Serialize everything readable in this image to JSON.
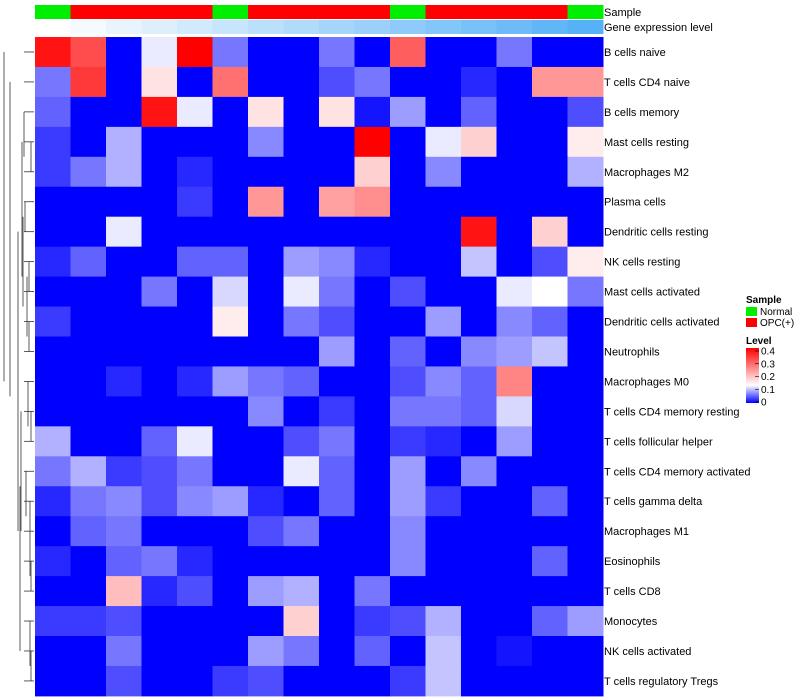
{
  "chart_data": {
    "type": "heatmap",
    "annotation_tracks": [
      {
        "name": "Sample",
        "values": [
          "Normal",
          "OPC(+)",
          "OPC(+)",
          "OPC(+)",
          "OPC(+)",
          "Normal",
          "OPC(+)",
          "OPC(+)",
          "OPC(+)",
          "OPC(+)",
          "Normal",
          "OPC(+)",
          "OPC(+)",
          "OPC(+)",
          "OPC(+)",
          "Normal"
        ]
      },
      {
        "name": "Gene expression level",
        "values": [
          1,
          2,
          3,
          4,
          5,
          6,
          7,
          8,
          9,
          10,
          11,
          12,
          13,
          14,
          15,
          16
        ]
      }
    ],
    "rows": [
      "B cells naive",
      "T cells CD4 naive",
      "B cells memory",
      "Mast cells resting",
      "Macrophages M2",
      "Plasma cells",
      "Dendritic cells resting",
      "NK cells resting",
      "Mast cells activated",
      "Dendritic cells activated",
      "Neutrophils",
      "Macrophages M0",
      "T cells CD4 memory resting",
      "T cells follicular helper",
      "T cells CD4 memory activated",
      "T cells gamma delta",
      "Macrophages M1",
      "Eosinophils",
      "T cells CD8",
      "Monocytes",
      "NK cells activated",
      "T cells regulatory  Tregs"
    ],
    "matrix": [
      [
        0.38,
        0.32,
        0,
        0.12,
        0.4,
        0.06,
        0,
        0,
        0.06,
        0,
        0.3,
        0,
        0,
        0.06,
        0,
        0
      ],
      [
        0.06,
        0.34,
        0,
        0.16,
        0,
        0.28,
        0,
        0,
        0.04,
        0.06,
        0,
        0,
        0.02,
        0,
        0.24,
        0.24
      ],
      [
        0.05,
        0,
        0,
        0.38,
        0.12,
        0,
        0.16,
        0,
        0.16,
        0.01,
        0.08,
        0,
        0.05,
        0,
        0,
        0.04
      ],
      [
        0.03,
        0,
        0.09,
        0,
        0,
        0,
        0.07,
        0,
        0,
        0.4,
        0,
        0.12,
        0.18,
        0,
        0,
        0.15
      ],
      [
        0.03,
        0.06,
        0.09,
        0,
        0.02,
        0,
        0,
        0,
        0,
        0.18,
        0,
        0.07,
        0,
        0,
        0,
        0.09
      ],
      [
        0,
        0,
        0,
        0,
        0.03,
        0,
        0.24,
        0,
        0.23,
        0.25,
        0,
        0,
        0,
        0,
        0,
        0
      ],
      [
        0,
        0,
        0.12,
        0,
        0,
        0,
        0,
        0,
        0,
        0,
        0,
        0,
        0.38,
        0,
        0.18,
        0
      ],
      [
        0.02,
        0.05,
        0,
        0,
        0.05,
        0.05,
        0,
        0.08,
        0.07,
        0.02,
        0,
        0,
        0.1,
        0,
        0.04,
        0.15
      ],
      [
        0,
        0,
        0,
        0.06,
        0,
        0.11,
        0,
        0.12,
        0.06,
        0,
        0.04,
        0,
        0,
        0.12,
        0.13,
        0.06
      ],
      [
        0.03,
        0,
        0,
        0,
        0,
        0.15,
        0,
        0.06,
        0.04,
        0,
        0,
        0.08,
        0,
        0.07,
        0.05,
        0
      ],
      [
        0,
        0,
        0,
        0,
        0,
        0,
        0,
        0,
        0.08,
        0,
        0.05,
        0,
        0.07,
        0.08,
        0.1,
        0
      ],
      [
        0,
        0,
        0.02,
        0,
        0.02,
        0.08,
        0.06,
        0.05,
        0,
        0,
        0.04,
        0.07,
        0.05,
        0.26,
        0,
        0
      ],
      [
        0,
        0,
        0,
        0,
        0,
        0,
        0.07,
        0,
        0.03,
        0,
        0.06,
        0.06,
        0.05,
        0.11,
        0,
        0
      ],
      [
        0.09,
        0,
        0,
        0.05,
        0.12,
        0,
        0,
        0.04,
        0.06,
        0,
        0.03,
        0.02,
        0,
        0.08,
        0,
        0
      ],
      [
        0.06,
        0.09,
        0.03,
        0.04,
        0.06,
        0,
        0,
        0.12,
        0.05,
        0,
        0.08,
        0,
        0.07,
        0,
        0,
        0
      ],
      [
        0.02,
        0.06,
        0.07,
        0.04,
        0.07,
        0.08,
        0.02,
        0,
        0.05,
        0,
        0.08,
        0.03,
        0,
        0,
        0.05,
        0
      ],
      [
        0,
        0.05,
        0.06,
        0,
        0,
        0,
        0.04,
        0.06,
        0,
        0,
        0.07,
        0,
        0,
        0,
        0,
        0
      ],
      [
        0.02,
        0,
        0.05,
        0.06,
        0.02,
        0,
        0,
        0,
        0,
        0,
        0.07,
        0,
        0,
        0,
        0.05,
        0
      ],
      [
        0,
        0,
        0.2,
        0.02,
        0.04,
        0,
        0.08,
        0.09,
        0,
        0.06,
        0,
        0,
        0,
        0,
        0,
        0
      ],
      [
        0.03,
        0.03,
        0.04,
        0,
        0,
        0,
        0,
        0.18,
        0,
        0.03,
        0.04,
        0.09,
        0,
        0,
        0.05,
        0.08
      ],
      [
        0,
        0,
        0.06,
        0,
        0,
        0,
        0.08,
        0.06,
        0,
        0.05,
        0,
        0.1,
        0,
        0.01,
        0,
        0
      ],
      [
        0,
        0,
        0.04,
        0,
        0,
        0.03,
        0.04,
        0,
        0,
        0,
        0.03,
        0.1,
        0,
        0,
        0,
        0
      ]
    ],
    "legend": {
      "sample_title": "Sample",
      "sample_entries": [
        {
          "label": "Normal",
          "color": "#00ee00"
        },
        {
          "label": "OPC(+)",
          "color": "#ff0000"
        }
      ],
      "level_title": "Level",
      "level_ticks": [
        "0.4",
        "0.3",
        "0.2",
        "0.1",
        "0"
      ],
      "level_range": [
        0,
        0.4
      ],
      "position": "right"
    },
    "color_scale": {
      "low": "#0000ff",
      "mid": "#ffffff",
      "high": "#ff0000",
      "mid_value": 0.13,
      "max_value": 0.4
    },
    "gene_expression_colors": {
      "low": "#ffffff",
      "high": "#56b1f7"
    }
  }
}
